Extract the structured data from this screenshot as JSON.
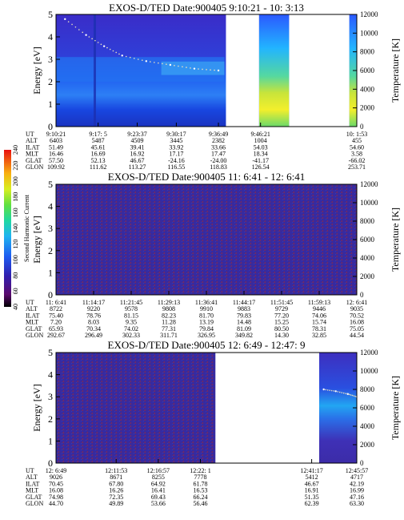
{
  "chart_data": [
    {
      "type": "heatmap",
      "title": "EXOS-D/TED   Date:900405  9:10:21 - 10: 3:13",
      "ylabel": "Energy [eV]",
      "ylabel_right": "Temperature [K]",
      "ylim": [
        0,
        5
      ],
      "yticks": [
        "0",
        "1",
        "2",
        "3",
        "4",
        "5"
      ],
      "ylim_right": [
        0,
        12000
      ],
      "yticks_right": [
        "0",
        "2000",
        "4000",
        "6000",
        "8000",
        "10000",
        "12000"
      ],
      "row_labels": [
        "UT",
        "ALT",
        "ILAT",
        "MLT",
        "GLAT",
        "GLON"
      ],
      "columns": [
        {
          "t": 0.0,
          "values": [
            "9:10:21",
            "6403",
            "51.49",
            "16.46",
            "57.50",
            "109.92"
          ]
        },
        {
          "t": 0.14,
          "values": [
            "9:17: 5",
            "5487",
            "45.61",
            "16.69",
            "52.13",
            "111.62"
          ]
        },
        {
          "t": 0.27,
          "values": [
            "9:23:37",
            "4509",
            "39.41",
            "16.92",
            "46.67",
            "113.27"
          ]
        },
        {
          "t": 0.4,
          "values": [
            "9:30:17",
            "3445",
            "33.92",
            "17.17",
            "-24.16",
            "116.55"
          ]
        },
        {
          "t": 0.54,
          "values": [
            "9:36:49",
            "2382",
            "33.66",
            "17.47",
            "-24.00",
            "118.83"
          ]
        },
        {
          "t": 0.68,
          "values": [
            "9:46:21",
            "1004",
            "54.03",
            "18.34",
            "-41.17",
            "126.54"
          ]
        },
        {
          "t": 1.0,
          "values": [
            "10: 1:53",
            "455",
            "54.60",
            "3.58",
            "-66.02",
            "253.71"
          ]
        }
      ],
      "data_gaps": [
        [
          0.565,
          0.675
        ],
        [
          0.775,
          0.975
        ]
      ],
      "temperature_trace": [
        [
          0.03,
          11500
        ],
        [
          0.1,
          9800
        ],
        [
          0.16,
          8600
        ],
        [
          0.22,
          7600
        ],
        [
          0.3,
          7000
        ],
        [
          0.38,
          6600
        ],
        [
          0.46,
          6200
        ],
        [
          0.54,
          6000
        ]
      ],
      "note_color_scale": "dark blue (low) to red (high)"
    },
    {
      "type": "heatmap",
      "title": "EXOS-D/TED   Date:900405  11: 6:41 - 12: 6:41",
      "ylabel": "Energy [eV]",
      "ylabel_right": "Temperature [K]",
      "ylim": [
        0,
        5
      ],
      "yticks": [
        "0",
        "1",
        "2",
        "3",
        "4",
        "5"
      ],
      "ylim_right": [
        0,
        12000
      ],
      "yticks_right": [
        "0",
        "2000",
        "4000",
        "6000",
        "8000",
        "10000",
        "12000"
      ],
      "row_labels": [
        "UT",
        "ALT",
        "ILAT",
        "MLT",
        "GLAT",
        "GLON"
      ],
      "columns": [
        {
          "t": 0.0,
          "values": [
            "11: 6:41",
            "8722",
            "75.40",
            "7.20",
            "65.93",
            "292.67"
          ]
        },
        {
          "t": 0.125,
          "values": [
            "11:14:17",
            "9220",
            "78.76",
            "8.03",
            "70.34",
            "296.49"
          ]
        },
        {
          "t": 0.25,
          "values": [
            "11:21:45",
            "9578",
            "81.15",
            "9.35",
            "74.02",
            "302.33"
          ]
        },
        {
          "t": 0.375,
          "values": [
            "11:29:13",
            "9808",
            "82.23",
            "11.28",
            "77.31",
            "311.71"
          ]
        },
        {
          "t": 0.5,
          "values": [
            "11:36:41",
            "9910",
            "81.70",
            "13.19",
            "79.84",
            "326.95"
          ]
        },
        {
          "t": 0.625,
          "values": [
            "11:44:17",
            "9883",
            "79.83",
            "14.48",
            "81.09",
            "349.82"
          ]
        },
        {
          "t": 0.75,
          "values": [
            "11:51:45",
            "9729",
            "77.20",
            "15.25",
            "80.50",
            "14.30"
          ]
        },
        {
          "t": 0.875,
          "values": [
            "11:59:13",
            "9446",
            "74.06",
            "15.74",
            "78.31",
            "32.85"
          ]
        },
        {
          "t": 1.0,
          "values": [
            "12: 6:41",
            "9035",
            "70.52",
            "16.08",
            "75.05",
            "44.54"
          ]
        }
      ],
      "data_gaps": [],
      "colorbar": {
        "label": "Second Harmonic Current",
        "ticks": [
          "40",
          "60",
          "80",
          "100",
          "120",
          "140",
          "160",
          "180",
          "200",
          "220",
          "240"
        ]
      }
    },
    {
      "type": "heatmap",
      "title": "EXOS-D/TED   Date:900405  12: 6:49 - 12:47: 9",
      "ylabel": "Energy [eV]",
      "ylabel_right": "Temperature [K]",
      "ylim": [
        0,
        5
      ],
      "yticks": [
        "0",
        "1",
        "2",
        "3",
        "4",
        "5"
      ],
      "ylim_right": [
        0,
        12000
      ],
      "yticks_right": [
        "0",
        "2000",
        "4000",
        "6000",
        "8000",
        "10000",
        "12000"
      ],
      "row_labels": [
        "UT",
        "ALT",
        "ILAT",
        "MLT",
        "GLAT",
        "GLON"
      ],
      "columns": [
        {
          "t": 0.0,
          "values": [
            "12: 6:49",
            "9026",
            "70.45",
            "16.08",
            "74.98",
            "44.70"
          ]
        },
        {
          "t": 0.2,
          "values": [
            "12:11:53",
            "8671",
            "67.80",
            "16.26",
            "72.35",
            "49.89"
          ]
        },
        {
          "t": 0.34,
          "values": [
            "12:16:57",
            "8255",
            "64.92",
            "16.41",
            "69.43",
            "53.66"
          ]
        },
        {
          "t": 0.48,
          "values": [
            "12:22: 1",
            "7778",
            "61.78",
            "16.53",
            "66.24",
            "56.46"
          ]
        },
        {
          "t": 0.85,
          "values": [
            "12:41:17",
            "5412",
            "46.67",
            "16.91",
            "51.35",
            "62.39"
          ]
        },
        {
          "t": 1.0,
          "values": [
            "12:45:57",
            "4717",
            "42.19",
            "16.99",
            "47.16",
            "63.30"
          ]
        }
      ],
      "data_gaps": [
        [
          0.53,
          0.875
        ]
      ],
      "temperature_trace": [
        [
          0.89,
          8000
        ],
        [
          0.93,
          7800
        ],
        [
          0.97,
          7500
        ],
        [
          1.0,
          7200
        ]
      ]
    }
  ]
}
